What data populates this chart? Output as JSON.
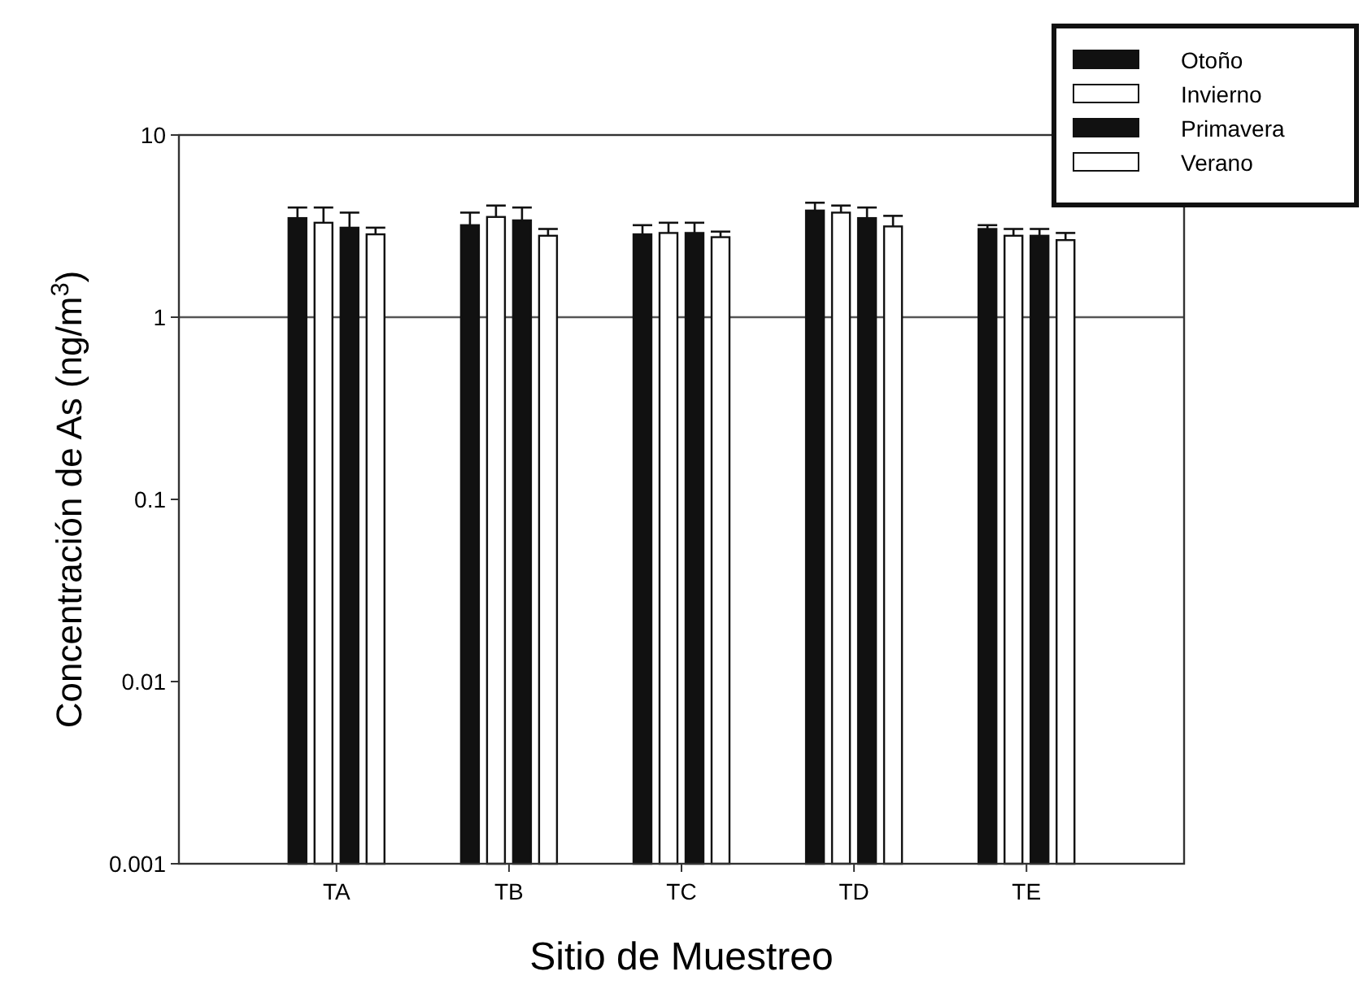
{
  "chart_data": {
    "type": "bar",
    "xlabel": "Sitio de Muestreo",
    "ylabel": "Concentración de As (ng/m$^{3}$)",
    "categories": [
      "TA",
      "TB",
      "TC",
      "TD",
      "TE"
    ],
    "series": [
      {
        "name": "Otoño",
        "color": "#111111",
        "values": [
          3.5,
          3.2,
          2.85,
          3.85,
          3.05
        ],
        "errors": [
          [
            3.5,
            4.0
          ],
          [
            3.2,
            3.75
          ],
          [
            2.85,
            3.2
          ],
          [
            3.85,
            4.25
          ],
          [
            3.05,
            3.2
          ]
        ]
      },
      {
        "name": "Invierno",
        "color": "#ffffff",
        "values": [
          3.3,
          3.55,
          2.9,
          3.75,
          2.8
        ],
        "errors": [
          [
            3.3,
            4.0
          ],
          [
            3.55,
            4.1
          ],
          [
            2.9,
            3.3
          ],
          [
            3.75,
            4.1
          ],
          [
            2.8,
            3.05
          ]
        ]
      },
      {
        "name": "Primavera",
        "color": "#111111",
        "values": [
          3.1,
          3.4,
          2.9,
          3.5,
          2.8
        ],
        "errors": [
          [
            3.1,
            3.75
          ],
          [
            3.4,
            4.0
          ],
          [
            2.9,
            3.3
          ],
          [
            3.5,
            4.0
          ],
          [
            2.8,
            3.05
          ]
        ]
      },
      {
        "name": "Verano",
        "color": "#ffffff",
        "values": [
          2.85,
          2.8,
          2.75,
          3.15,
          2.65
        ],
        "errors": [
          [
            2.85,
            3.1
          ],
          [
            2.8,
            3.05
          ],
          [
            2.75,
            2.95
          ],
          [
            3.15,
            3.6
          ],
          [
            2.65,
            2.9
          ]
        ]
      }
    ],
    "log": true,
    "ylim": [
      0.001,
      10
    ],
    "yticks": [
      0.001,
      0.01,
      0.1,
      1,
      10
    ],
    "ref_lines": [
      {
        "axis": "y",
        "value": 1
      }
    ],
    "legend": "top right",
    "grid": false
  }
}
